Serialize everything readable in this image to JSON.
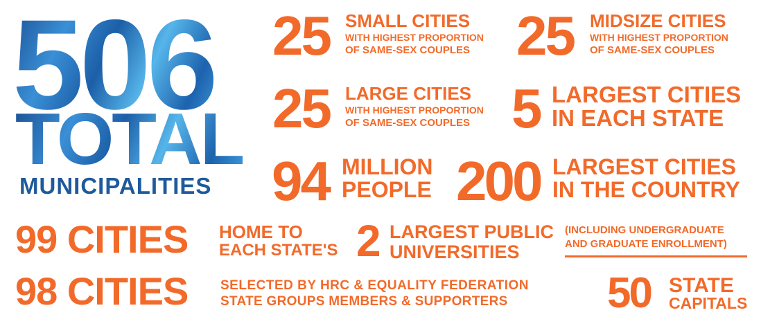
{
  "headline": {
    "number": "506",
    "word": "TOTAL",
    "label": "MUNICIPALITIES"
  },
  "stats": [
    {
      "number": "25",
      "lines": [
        "SMALL CITIES",
        "WITH HIGHEST PROPORTION",
        "OF SAME-SEX COUPLES"
      ]
    },
    {
      "number": "25",
      "lines": [
        "MIDSIZE CITIES",
        "WITH HIGHEST PROPORTION",
        "OF SAME-SEX COUPLES"
      ]
    },
    {
      "number": "25",
      "lines": [
        "LARGE CITIES",
        "WITH HIGHEST PROPORTION",
        "OF SAME-SEX COUPLES"
      ]
    },
    {
      "number": "5",
      "lines": [
        "LARGEST CITIES",
        "IN EACH STATE"
      ]
    },
    {
      "number": "94",
      "lines": [
        "MILLION",
        "PEOPLE"
      ]
    },
    {
      "number": "200",
      "lines": [
        "LARGEST CITIES",
        "IN THE COUNTRY"
      ]
    }
  ],
  "universities": {
    "count": "99 CITIES",
    "lines": [
      "HOME TO",
      "EACH STATE'S"
    ],
    "number": "2",
    "title": [
      "LARGEST PUBLIC",
      "UNIVERSITIES"
    ],
    "note": [
      "(INCLUDING UNDERGRADUATE",
      "AND GRADUATE ENROLLMENT)"
    ]
  },
  "selected": {
    "count": "98 CITIES",
    "lines": [
      "SELECTED BY HRC & EQUALITY FEDERATION",
      "STATE GROUPS MEMBERS & SUPPORTERS"
    ],
    "number": "50",
    "title": [
      "STATE",
      "CAPITALS"
    ]
  }
}
